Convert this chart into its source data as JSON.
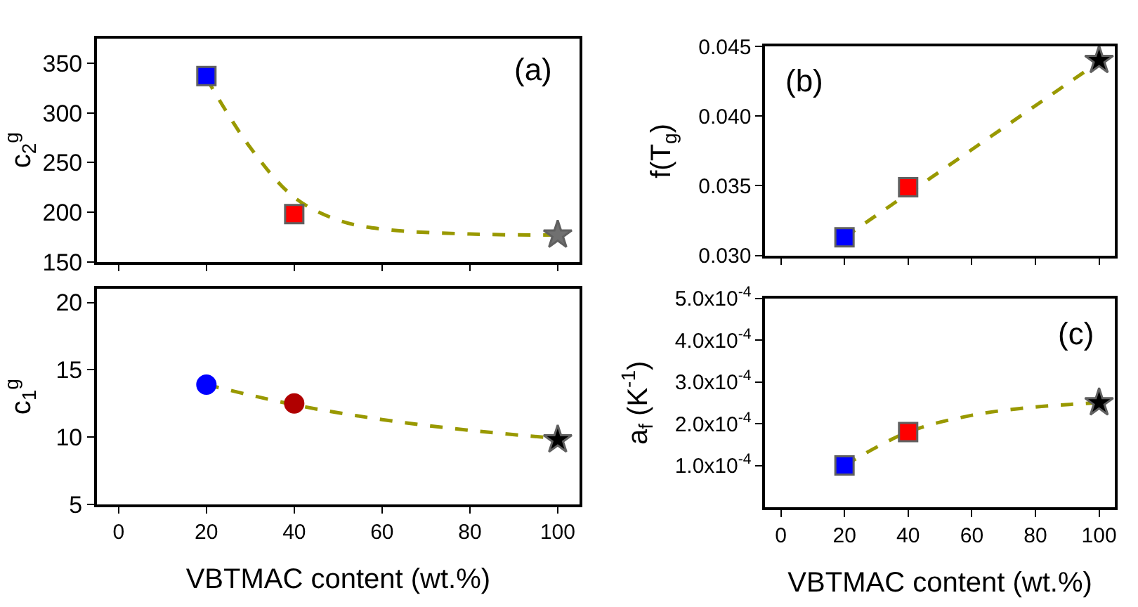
{
  "chart_data": [
    {
      "type": "scatter",
      "ylabel": "c$_{2}$$^{g}$",
      "annotations": [
        "(a)"
      ],
      "xlim": [
        -5,
        105
      ],
      "xticks": [
        0,
        20,
        40,
        60,
        80,
        100
      ],
      "ylim": [
        150,
        375
      ],
      "yticks": [
        150,
        200,
        250,
        300,
        350
      ],
      "tick_labels": "y",
      "series": [
        {
          "type": "line",
          "color": "#999900",
          "line_style": "dashed",
          "marker": "none",
          "x": [
            20,
            30,
            40,
            50,
            60,
            80,
            100
          ],
          "values": [
            335,
            265,
            215,
            192,
            183,
            178,
            177
          ]
        },
        {
          "color": "#0000ff",
          "marker": "square",
          "x": [
            20
          ],
          "values": [
            337
          ]
        },
        {
          "color": "#ff0000",
          "marker": "square",
          "x": [
            40
          ],
          "values": [
            198
          ]
        },
        {
          "color": "#707070",
          "marker": "star",
          "x": [
            100
          ],
          "values": [
            177
          ]
        }
      ]
    },
    {
      "type": "scatter",
      "ylabel": "c$_{1}$$^{g}$",
      "xlabel": "VBTMAC content (wt.%)",
      "xlim": [
        -5,
        105
      ],
      "xticks": [
        0,
        20,
        40,
        60,
        80,
        100
      ],
      "ylim": [
        5,
        21
      ],
      "yticks": [
        5,
        10,
        15,
        20
      ],
      "series": [
        {
          "type": "line",
          "color": "#999900",
          "line_style": "dashed",
          "marker": "none",
          "x": [
            20,
            40,
            60,
            80,
            100
          ],
          "values": [
            13.9,
            12.4,
            11.3,
            10.5,
            9.9
          ]
        },
        {
          "color": "#0000ff",
          "marker": "circle",
          "x": [
            20
          ],
          "values": [
            13.9
          ]
        },
        {
          "color": "#b00000",
          "marker": "circle",
          "x": [
            40
          ],
          "values": [
            12.5
          ]
        },
        {
          "color": "#000000",
          "marker": "star",
          "x": [
            100
          ],
          "values": [
            9.8
          ]
        }
      ]
    },
    {
      "type": "scatter",
      "ylabel": "f(T$_{g}$)",
      "annotations": [
        "(b)"
      ],
      "xlim": [
        -5,
        105
      ],
      "xticks": [
        0,
        20,
        40,
        60,
        80,
        100
      ],
      "ylim": [
        0.03,
        0.045
      ],
      "yticks": [
        {
          "value": 0.03,
          "label": "0.030"
        },
        {
          "value": 0.035,
          "label": "0.035"
        },
        {
          "value": 0.04,
          "label": "0.040"
        },
        {
          "value": 0.045,
          "label": "0.045"
        }
      ],
      "tick_labels": "y",
      "series": [
        {
          "type": "line",
          "color": "#999900",
          "line_style": "dashed",
          "marker": "none",
          "x": [
            20,
            100
          ],
          "values": [
            0.0313,
            0.0439
          ]
        },
        {
          "color": "#0000ff",
          "marker": "square",
          "x": [
            20
          ],
          "values": [
            0.0313
          ]
        },
        {
          "color": "#ff0000",
          "marker": "square",
          "x": [
            40
          ],
          "values": [
            0.0349
          ]
        },
        {
          "color": "#000000",
          "marker": "star",
          "x": [
            100
          ],
          "values": [
            0.044
          ]
        }
      ]
    },
    {
      "type": "scatter",
      "ylabel": "a$_{f}$ (K$^{-1}$)",
      "xlabel": "VBTMAC content (wt.%)",
      "annotations": [
        "(c)"
      ],
      "xlim": [
        -5,
        105
      ],
      "xticks": [
        0,
        20,
        40,
        60,
        80,
        100
      ],
      "ylim": [
        0,
        0.0005
      ],
      "yticks": [
        {
          "value": 0.0001,
          "label": "1.0x10$^{-4}$"
        },
        {
          "value": 0.0002,
          "label": "2.0x10$^{-4}$"
        },
        {
          "value": 0.0003,
          "label": "3.0x10$^{-4}$"
        },
        {
          "value": 0.0004,
          "label": "4.0x10$^{-4}$"
        },
        {
          "value": 0.0005,
          "label": "5.0x10$^{-4}$"
        }
      ],
      "series": [
        {
          "type": "line",
          "color": "#999900",
          "line_style": "dashed",
          "marker": "none",
          "x": [
            20,
            40,
            60,
            80,
            100
          ],
          "values": [
            0.0001,
            0.00018,
            0.00022,
            0.00024,
            0.00025
          ]
        },
        {
          "color": "#0000ff",
          "marker": "square",
          "x": [
            20
          ],
          "values": [
            0.0001
          ]
        },
        {
          "color": "#ff0000",
          "marker": "square",
          "x": [
            40
          ],
          "values": [
            0.00018
          ]
        },
        {
          "color": "#000000",
          "marker": "star",
          "x": [
            100
          ],
          "values": [
            0.00025
          ]
        }
      ]
    }
  ]
}
